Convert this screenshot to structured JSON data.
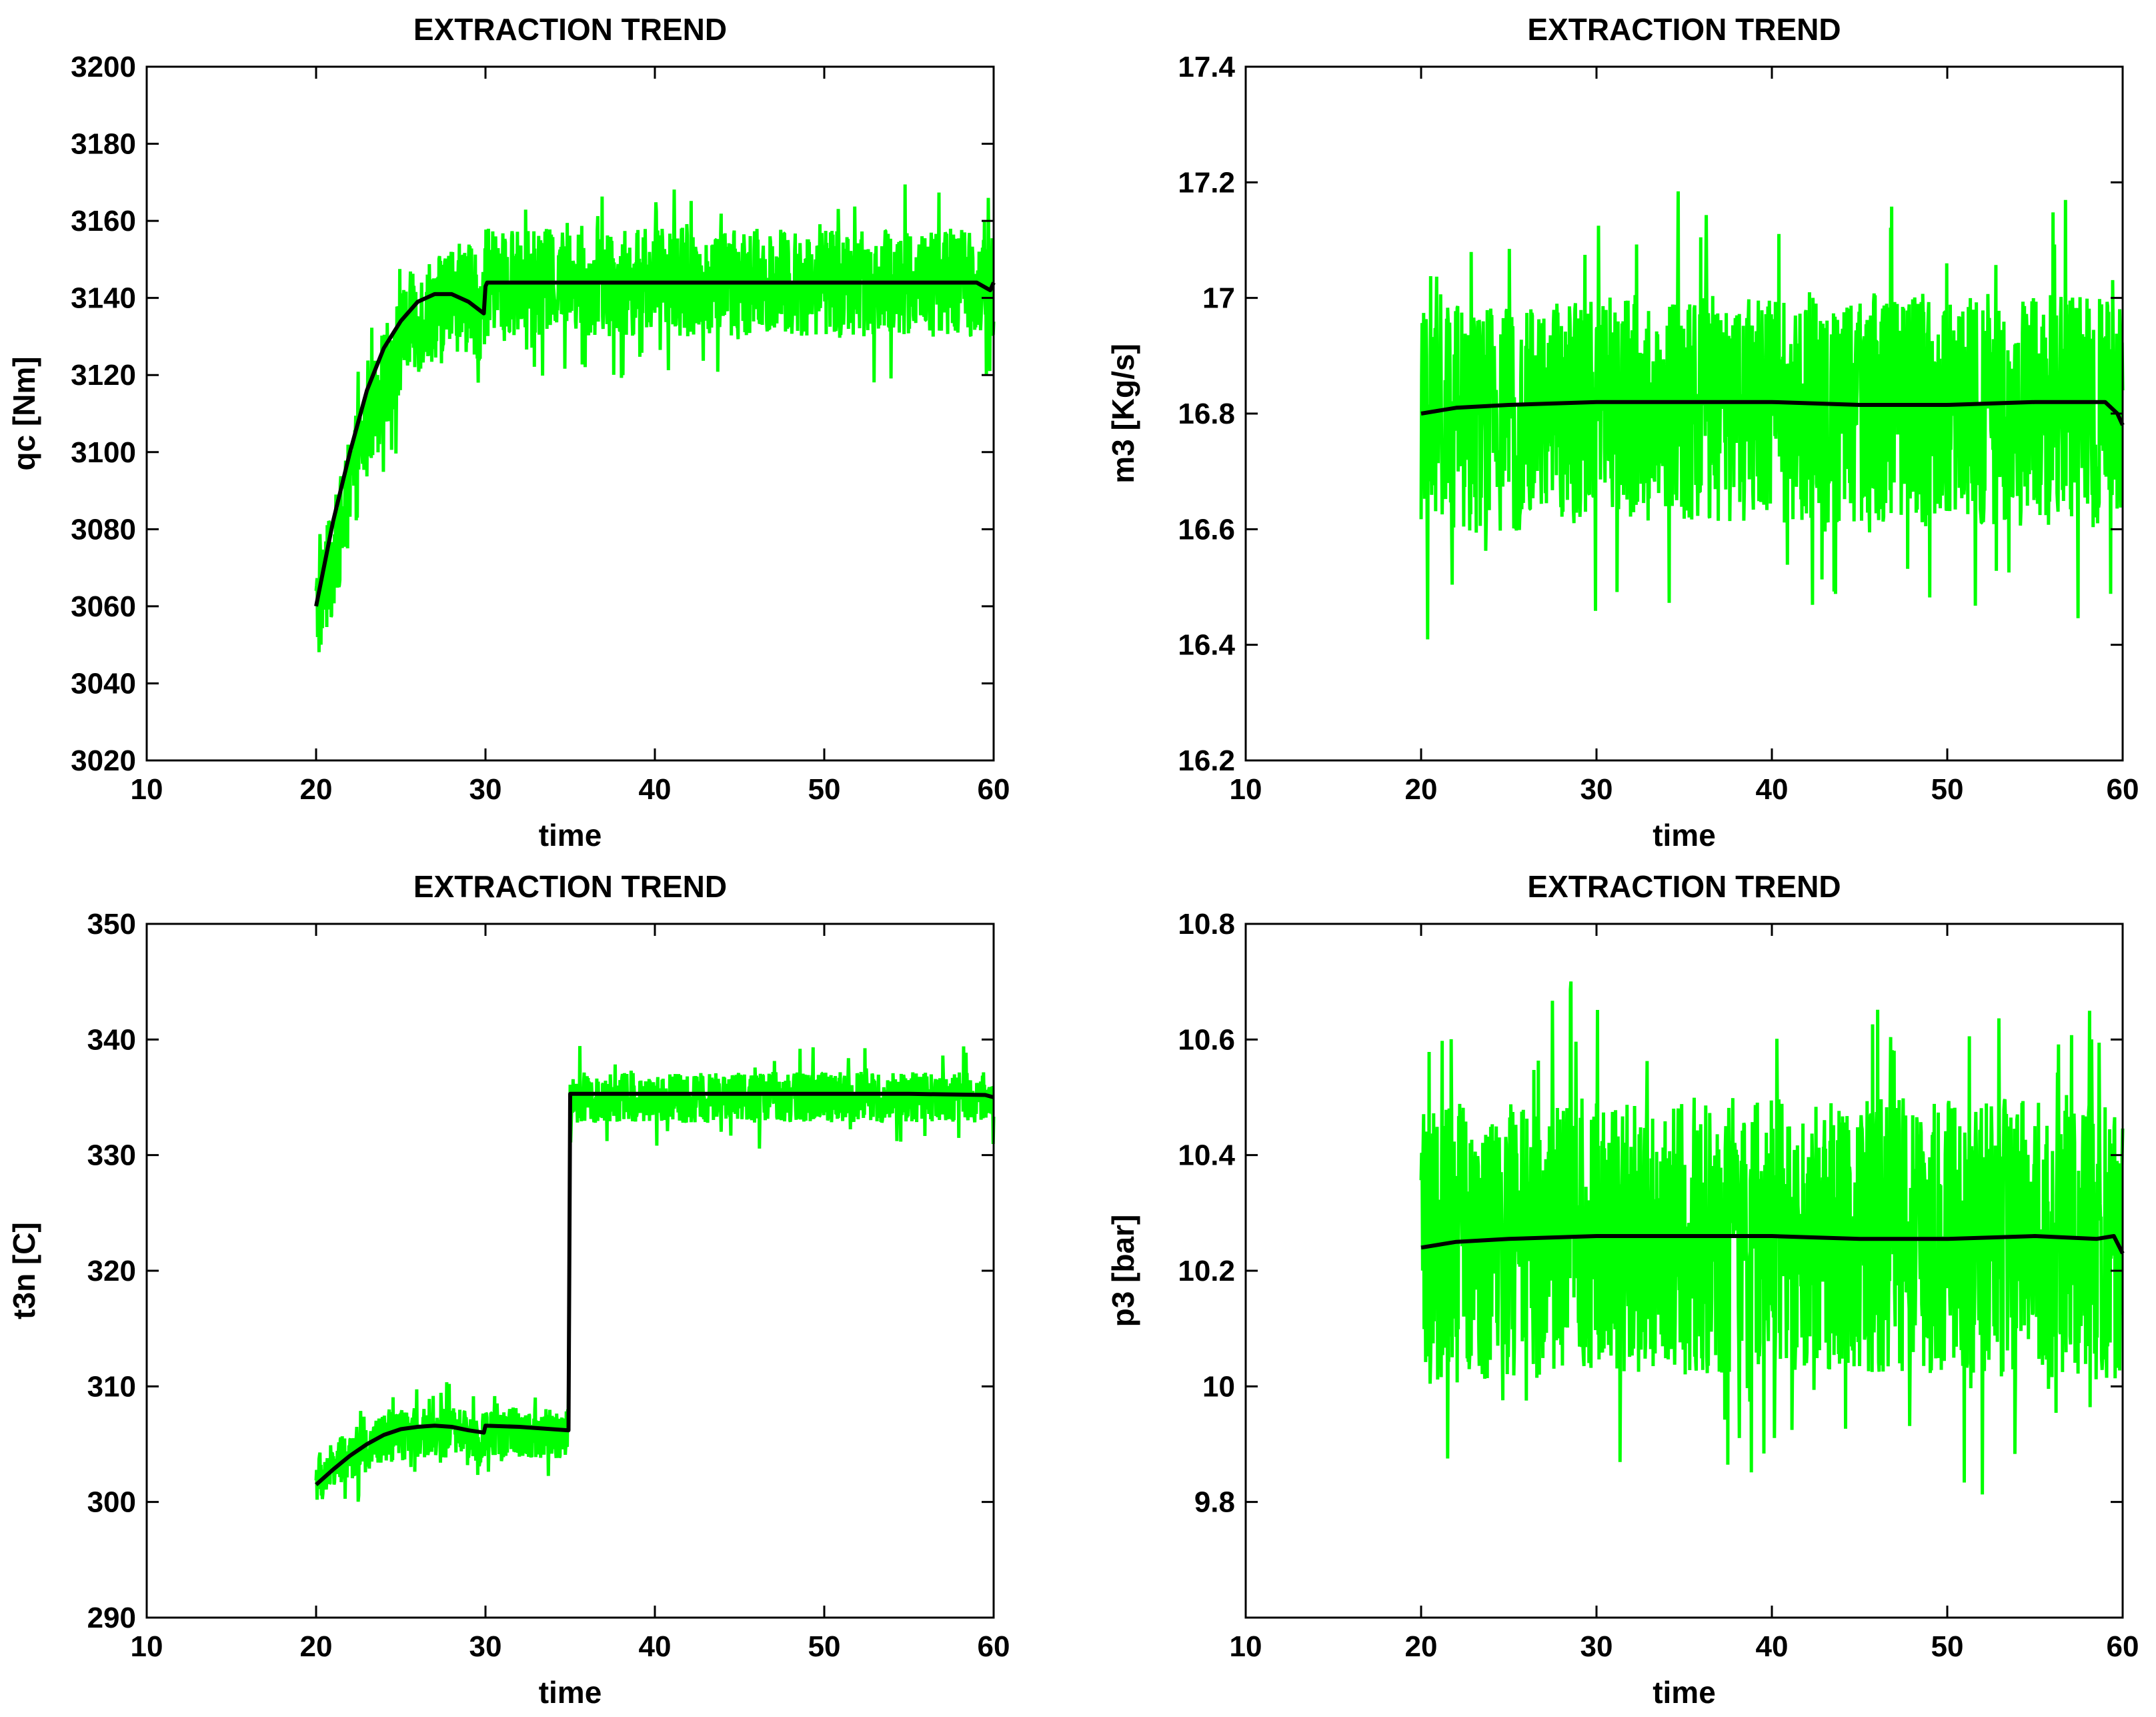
{
  "figure": {
    "background": "#ffffff",
    "noise_color": "#00ff00",
    "trend_color": "#000000"
  },
  "chart_data": [
    {
      "type": "line",
      "title": "EXTRACTION TREND",
      "xlabel": "time",
      "ylabel": "qc [Nm]",
      "xlim": [
        10,
        60
      ],
      "ylim": [
        3020,
        3200
      ],
      "xticks": [
        10,
        20,
        30,
        40,
        50,
        60
      ],
      "yticks": [
        3020,
        3040,
        3060,
        3080,
        3100,
        3120,
        3140,
        3160,
        3180,
        3200
      ],
      "series": [
        {
          "name": "measured",
          "color": "#00ff00",
          "x_start": 20,
          "x_end": 60,
          "noise_amplitude": 14,
          "spike_amplitude": 26,
          "x": [
            20,
            21,
            22,
            23,
            24,
            25,
            26,
            27,
            28,
            29,
            29.9,
            30,
            30.1,
            35,
            40,
            45,
            50,
            55,
            59,
            59.8,
            60
          ],
          "y": [
            3058,
            3072,
            3090,
            3106,
            3118,
            3128,
            3134,
            3138,
            3140,
            3140,
            3136,
            3144,
            3144,
            3144,
            3144,
            3144,
            3144,
            3144,
            3144,
            3144,
            3144
          ]
        },
        {
          "name": "trend",
          "color": "#000000",
          "x": [
            20,
            21,
            22,
            23,
            24,
            25,
            26,
            27,
            28,
            29,
            29.9,
            30,
            30.1,
            35,
            40,
            45,
            50,
            55,
            59,
            59.8,
            60
          ],
          "y": [
            3060,
            3082,
            3100,
            3116,
            3127,
            3134,
            3139,
            3141,
            3141,
            3139,
            3136,
            3143,
            3144,
            3144,
            3144,
            3144,
            3144,
            3144,
            3144,
            3142,
            3144
          ]
        }
      ]
    },
    {
      "type": "line",
      "title": "EXTRACTION TREND",
      "xlabel": "time",
      "ylabel": "m3 [Kg/s]",
      "xlim": [
        10,
        60
      ],
      "ylim": [
        16.2,
        17.4
      ],
      "xticks": [
        10,
        20,
        30,
        40,
        50,
        60
      ],
      "yticks": [
        16.2,
        16.4,
        16.6,
        16.8,
        17,
        17.2,
        17.4
      ],
      "ytick_labels": [
        "16.2",
        "16.4",
        "16.6",
        "16.8",
        "17",
        "17.2",
        "17.4"
      ],
      "series": [
        {
          "name": "measured",
          "color": "#00ff00",
          "x_start": 20,
          "x_end": 60,
          "noise_amplitude": 0.2,
          "spike_amplitude": 0.38,
          "x": [
            20,
            30,
            40,
            50,
            60
          ],
          "y": [
            16.78,
            16.81,
            16.81,
            16.81,
            16.8
          ]
        },
        {
          "name": "trend",
          "color": "#000000",
          "x": [
            20,
            22,
            25,
            30,
            35,
            40,
            45,
            50,
            55,
            59,
            59.7,
            60
          ],
          "y": [
            16.8,
            16.81,
            16.815,
            16.82,
            16.82,
            16.82,
            16.815,
            16.815,
            16.82,
            16.82,
            16.8,
            16.78
          ]
        }
      ]
    },
    {
      "type": "line",
      "title": "EXTRACTION TREND",
      "xlabel": "time",
      "ylabel": "t3n [C]",
      "xlim": [
        10,
        60
      ],
      "ylim": [
        290,
        350
      ],
      "xticks": [
        10,
        20,
        30,
        40,
        50,
        60
      ],
      "yticks": [
        290,
        300,
        310,
        320,
        330,
        340,
        350
      ],
      "series": [
        {
          "name": "measured",
          "color": "#00ff00",
          "x_start": 20,
          "x_end": 60,
          "noise_amplitude": 2.2,
          "spike_amplitude": 4.5,
          "x": [
            20,
            22,
            24,
            26,
            28,
            29.9,
            30,
            34.9,
            35,
            40,
            50,
            60
          ],
          "y": [
            302,
            304,
            305.5,
            306,
            306,
            305.5,
            306,
            306,
            335,
            335,
            335,
            335
          ]
        },
        {
          "name": "trend",
          "color": "#000000",
          "x": [
            20,
            21,
            22,
            23,
            24,
            25,
            26,
            27,
            28,
            29,
            29.9,
            30,
            32,
            34.9,
            35,
            40,
            45,
            50,
            55,
            59.5,
            60
          ],
          "y": [
            301.5,
            302.8,
            304,
            305,
            305.8,
            306.3,
            306.5,
            306.6,
            306.5,
            306.2,
            306,
            306.6,
            306.5,
            306.2,
            335.3,
            335.3,
            335.3,
            335.3,
            335.3,
            335.2,
            335
          ]
        }
      ]
    },
    {
      "type": "line",
      "title": "EXTRACTION TREND",
      "xlabel": "time",
      "ylabel": "p3 [bar]",
      "xlim": [
        10,
        60
      ],
      "ylim": [
        9.6,
        10.8
      ],
      "xticks": [
        10,
        20,
        30,
        40,
        50,
        60
      ],
      "yticks": [
        9.8,
        10,
        10.2,
        10.4,
        10.6,
        10.8
      ],
      "ytick_labels": [
        "9.8",
        "10",
        "10.2",
        "10.4",
        "10.6",
        "10.8"
      ],
      "series": [
        {
          "name": "measured",
          "color": "#00ff00",
          "x_start": 20,
          "x_end": 60,
          "noise_amplitude": 0.24,
          "spike_amplitude": 0.45,
          "x": [
            20,
            30,
            40,
            50,
            60
          ],
          "y": [
            10.24,
            10.26,
            10.26,
            10.26,
            10.25
          ]
        },
        {
          "name": "trend",
          "color": "#000000",
          "x": [
            20,
            22,
            25,
            30,
            35,
            40,
            45,
            50,
            55,
            58.5,
            59.5,
            60
          ],
          "y": [
            10.24,
            10.25,
            10.255,
            10.26,
            10.26,
            10.26,
            10.255,
            10.255,
            10.26,
            10.255,
            10.26,
            10.23
          ]
        }
      ]
    }
  ]
}
